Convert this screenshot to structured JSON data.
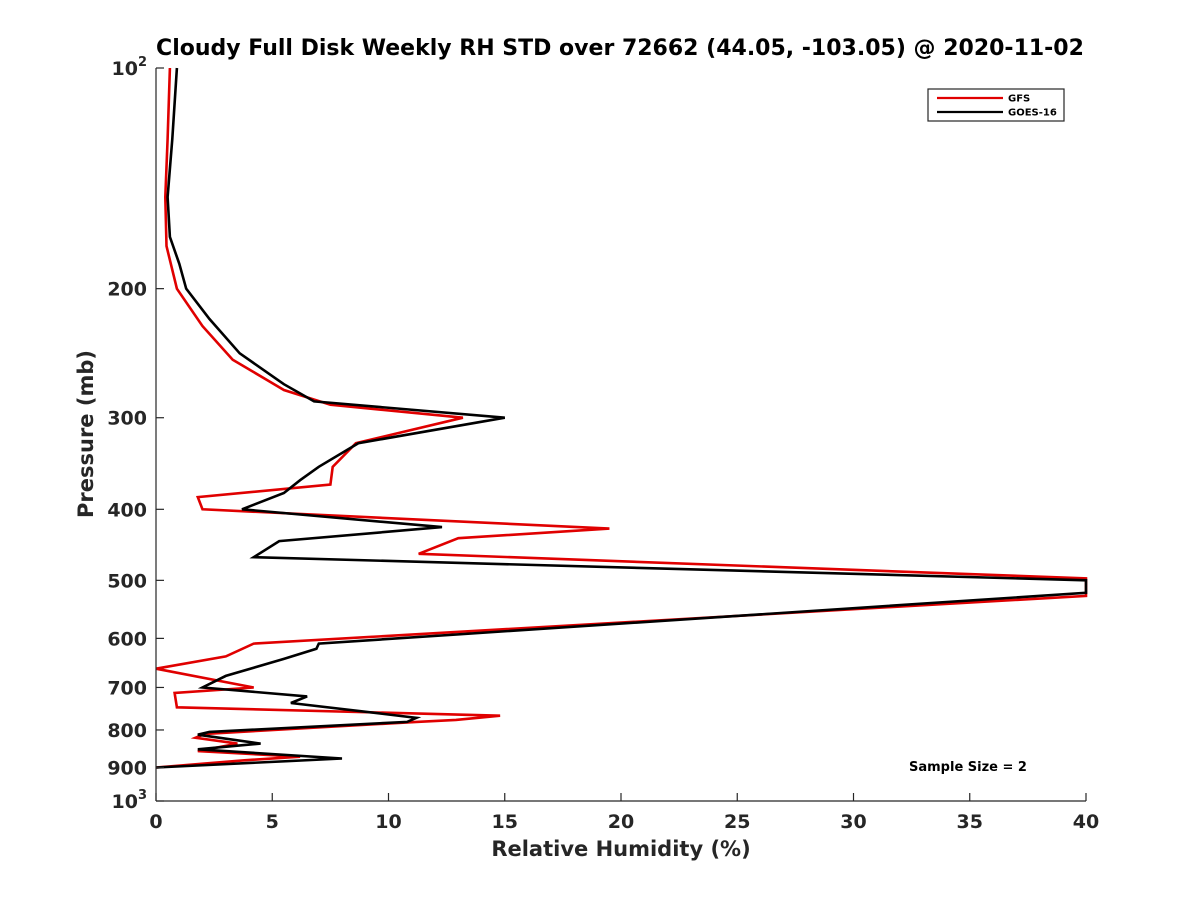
{
  "chart_data": {
    "type": "line",
    "title": "Cloudy Full Disk Weekly RH STD over 72662 (44.05, -103.05) @ 2020-11-02",
    "xlabel": "Relative Humidity (%)",
    "ylabel": "Pressure (mb)",
    "xlim": [
      0,
      40
    ],
    "ylim": [
      100,
      1000
    ],
    "y_scale": "log",
    "y_reversed": true,
    "x_ticks": [
      "0",
      "5",
      "10",
      "15",
      "20",
      "25",
      "30",
      "35",
      "40"
    ],
    "y_ticks": [
      {
        "value": 100,
        "base": "10",
        "exp": "2"
      },
      {
        "value": 200,
        "text": "200"
      },
      {
        "value": 300,
        "text": "300"
      },
      {
        "value": 400,
        "text": "400"
      },
      {
        "value": 500,
        "text": "500"
      },
      {
        "value": 600,
        "text": "600"
      },
      {
        "value": 700,
        "text": "700"
      },
      {
        "value": 800,
        "text": "800"
      },
      {
        "value": 900,
        "text": "900"
      },
      {
        "value": 1000,
        "base": "10",
        "exp": "3"
      }
    ],
    "legend_position": "top-right",
    "annotation": "Sample Size = 2",
    "series": [
      {
        "name": "GFS",
        "color": "#e00000",
        "points": [
          [
            0.6,
            100
          ],
          [
            0.5,
            125
          ],
          [
            0.4,
            150
          ],
          [
            0.45,
            175
          ],
          [
            0.9,
            200
          ],
          [
            2.0,
            225
          ],
          [
            3.3,
            250
          ],
          [
            5.5,
            275
          ],
          [
            7.5,
            288
          ],
          [
            13.2,
            300
          ],
          [
            8.6,
            325
          ],
          [
            7.6,
            350
          ],
          [
            7.5,
            370
          ],
          [
            1.8,
            385
          ],
          [
            2.0,
            400
          ],
          [
            19.5,
            425
          ],
          [
            13.0,
            438
          ],
          [
            11.3,
            460
          ],
          [
            40.0,
            497
          ],
          [
            40.0,
            525
          ],
          [
            4.2,
            610
          ],
          [
            3.0,
            635
          ],
          [
            0.0,
            660
          ],
          [
            4.2,
            700
          ],
          [
            0.8,
            712
          ],
          [
            0.9,
            745
          ],
          [
            14.8,
            765
          ],
          [
            12.9,
            775
          ],
          [
            11.2,
            780
          ],
          [
            2.1,
            810
          ],
          [
            1.7,
            820
          ],
          [
            3.5,
            835
          ],
          [
            1.8,
            855
          ],
          [
            6.2,
            870
          ],
          [
            3.8,
            880
          ],
          [
            0.0,
            900
          ]
        ]
      },
      {
        "name": "GOES-16",
        "color": "#000000",
        "points": [
          [
            0.9,
            100
          ],
          [
            0.7,
            125
          ],
          [
            0.5,
            150
          ],
          [
            0.6,
            170
          ],
          [
            1.0,
            185
          ],
          [
            1.3,
            200
          ],
          [
            2.3,
            220
          ],
          [
            3.6,
            245
          ],
          [
            5.5,
            270
          ],
          [
            6.8,
            285
          ],
          [
            15.0,
            300
          ],
          [
            8.7,
            325
          ],
          [
            7.0,
            350
          ],
          [
            6.2,
            365
          ],
          [
            5.5,
            380
          ],
          [
            3.7,
            400
          ],
          [
            12.3,
            423
          ],
          [
            5.3,
            442
          ],
          [
            4.2,
            465
          ],
          [
            40.0,
            500
          ],
          [
            40.0,
            520
          ],
          [
            7.0,
            610
          ],
          [
            6.9,
            620
          ],
          [
            5.5,
            640
          ],
          [
            3.0,
            675
          ],
          [
            2.0,
            700
          ],
          [
            6.5,
            720
          ],
          [
            5.8,
            735
          ],
          [
            11.2,
            770
          ],
          [
            10.8,
            780
          ],
          [
            2.3,
            805
          ],
          [
            1.8,
            812
          ],
          [
            4.5,
            835
          ],
          [
            1.8,
            850
          ],
          [
            8.0,
            875
          ],
          [
            0.0,
            900
          ]
        ]
      }
    ]
  }
}
